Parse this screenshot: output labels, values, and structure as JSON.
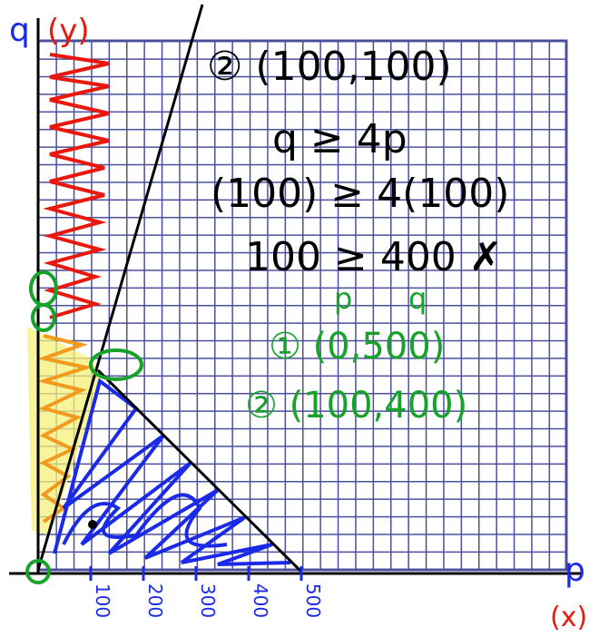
{
  "axis": {
    "y_label": "q",
    "y_unit": "(y)",
    "x_label": "p",
    "x_unit": "(x)",
    "x_ticks": [
      "100",
      "200",
      "300",
      "400",
      "500"
    ]
  },
  "notes": {
    "title": "② (100,100)",
    "lines": [
      "q ≥ 4p",
      "(100) ≥ 4(100)",
      "100 ≥ 400 ✗"
    ]
  },
  "points": {
    "header": [
      "p",
      "q"
    ],
    "rows": [
      "① (0,500)",
      "② (100,400)"
    ]
  }
}
